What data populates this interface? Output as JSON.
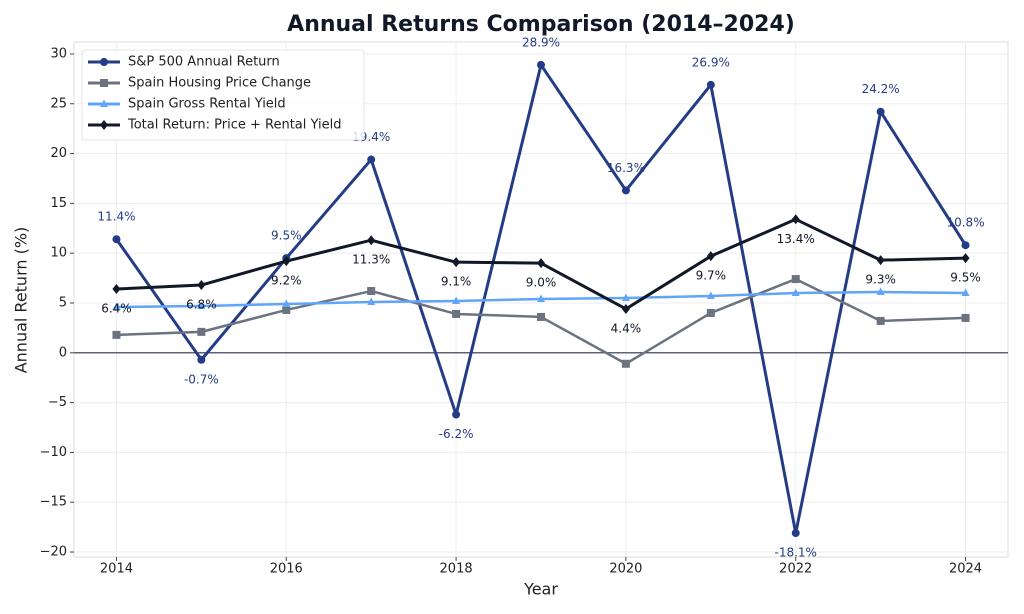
{
  "chart_data": {
    "type": "line",
    "title": "Annual Returns Comparison (2014–2024)",
    "xlabel": "Year",
    "ylabel": "Annual Return (%)",
    "x": [
      2014,
      2015,
      2016,
      2017,
      2018,
      2019,
      2020,
      2021,
      2022,
      2023,
      2024
    ],
    "series": [
      {
        "name": "S&P 500 Annual Return",
        "color": "#243c86",
        "marker": "circle",
        "values": [
          11.4,
          -0.7,
          9.5,
          19.4,
          -6.2,
          28.9,
          16.3,
          26.9,
          -18.1,
          24.2,
          10.8
        ],
        "value_labels": [
          "11.4%",
          "-0.7%",
          "9.5%",
          "19.4%",
          "-6.2%",
          "28.9%",
          "16.3%",
          "26.9%",
          "-18.1%",
          "24.2%",
          "10.8%"
        ]
      },
      {
        "name": "Spain Housing Price Change",
        "color": "#6b7280",
        "marker": "square",
        "values": [
          1.8,
          2.1,
          4.3,
          6.2,
          3.9,
          3.6,
          -1.1,
          4.0,
          7.4,
          3.2,
          3.5
        ]
      },
      {
        "name": "Spain Gross Rental Yield",
        "color": "#60a5fa",
        "marker": "triangle",
        "values": [
          4.6,
          4.7,
          4.9,
          5.1,
          5.2,
          5.4,
          5.5,
          5.7,
          6.0,
          6.1,
          6.0
        ]
      },
      {
        "name": "Total Return: Price + Rental Yield",
        "color": "#111827",
        "marker": "diamond",
        "values": [
          6.4,
          6.8,
          9.2,
          11.3,
          9.1,
          9.0,
          4.4,
          9.7,
          13.4,
          9.3,
          9.5
        ],
        "value_labels": [
          "6.4%",
          "6.8%",
          "9.2%",
          "11.3%",
          "9.1%",
          "9.0%",
          "4.4%",
          "9.7%",
          "13.4%",
          "9.3%",
          "9.5%"
        ]
      }
    ],
    "xlim": [
      2013.5,
      2024.5
    ],
    "xticks": [
      2014,
      2016,
      2018,
      2020,
      2022,
      2024
    ],
    "ylim": [
      -20.5,
      31.2
    ],
    "yticks": [
      {
        "value": -20,
        "label": "−20"
      },
      {
        "value": -15,
        "label": "−15"
      },
      {
        "value": -10,
        "label": "−10"
      },
      {
        "value": -5,
        "label": "−5"
      },
      0,
      5,
      10,
      15,
      20,
      25,
      30
    ],
    "grid": true,
    "zero_line": true,
    "legend": "upper-left"
  }
}
